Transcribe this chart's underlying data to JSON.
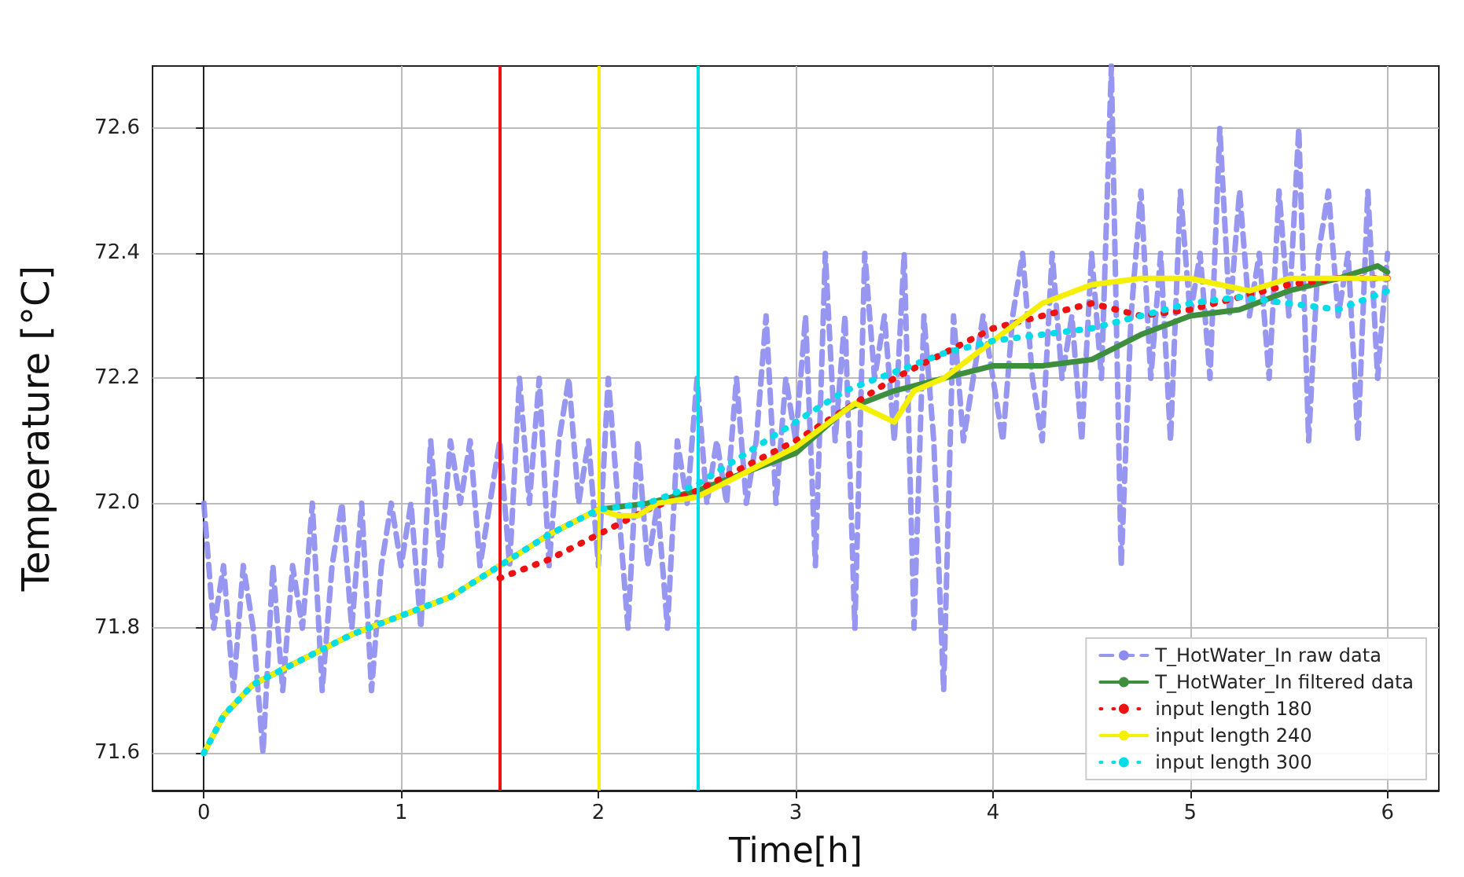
{
  "chart_data": {
    "type": "line",
    "xlabel": "Time[h]",
    "ylabel": "Temperature [°C]",
    "xlim": [
      -0.26,
      6.26
    ],
    "xticks": [
      0,
      1,
      2,
      3,
      4,
      5,
      6
    ],
    "ylim": [
      71.54,
      72.7
    ],
    "yticks": [
      71.6,
      71.8,
      {
        "value": 72,
        "label": "72.0"
      },
      72.2,
      72.4,
      72.6
    ],
    "grid": true,
    "legend": "bottom right",
    "marker": "none",
    "ref_lines": [
      {
        "axis": "x",
        "value": 1.5,
        "color": "#ee1111"
      },
      {
        "axis": "x",
        "value": 2,
        "color": "#f5f000"
      },
      {
        "axis": "x",
        "value": 2.5,
        "color": "#00dde8"
      }
    ],
    "series": [
      {
        "name": "T_HotWater_In raw data",
        "color": "#8c8cf0",
        "line_style": "dashed",
        "x": [
          0,
          0.05,
          0.1,
          0.15,
          0.2,
          0.25,
          0.3,
          0.35,
          0.4,
          0.45,
          0.5,
          0.55,
          0.6,
          0.65,
          0.7,
          0.75,
          0.8,
          0.85,
          0.9,
          0.95,
          1,
          1.05,
          1.1,
          1.15,
          1.2,
          1.25,
          1.3,
          1.35,
          1.4,
          1.45,
          1.5,
          1.55,
          1.6,
          1.65,
          1.7,
          1.75,
          1.8,
          1.85,
          1.9,
          1.95,
          2,
          2.05,
          2.1,
          2.15,
          2.2,
          2.25,
          2.3,
          2.35,
          2.4,
          2.45,
          2.5,
          2.55,
          2.6,
          2.65,
          2.7,
          2.75,
          2.8,
          2.85,
          2.9,
          2.95,
          3,
          3.05,
          3.1,
          3.15,
          3.2,
          3.25,
          3.3,
          3.35,
          3.4,
          3.45,
          3.5,
          3.55,
          3.6,
          3.65,
          3.7,
          3.75,
          3.8,
          3.85,
          3.9,
          3.95,
          4,
          4.05,
          4.1,
          4.15,
          4.2,
          4.25,
          4.3,
          4.35,
          4.4,
          4.45,
          4.5,
          4.55,
          4.6,
          4.65,
          4.7,
          4.75,
          4.8,
          4.85,
          4.9,
          4.95,
          5,
          5.05,
          5.1,
          5.15,
          5.2,
          5.25,
          5.3,
          5.35,
          5.4,
          5.45,
          5.5,
          5.55,
          5.6,
          5.65,
          5.7,
          5.75,
          5.8,
          5.85,
          5.9,
          5.95,
          6
        ],
        "values": [
          72.0,
          71.8,
          71.9,
          71.7,
          71.9,
          71.8,
          71.6,
          71.9,
          71.7,
          71.9,
          71.8,
          72.0,
          71.7,
          71.9,
          72.0,
          71.8,
          72.0,
          71.7,
          71.9,
          72.0,
          71.9,
          72.0,
          71.8,
          72.1,
          71.9,
          72.1,
          72.0,
          72.1,
          71.9,
          72.0,
          72.1,
          71.9,
          72.2,
          72.0,
          72.2,
          71.9,
          72.1,
          72.2,
          72.0,
          72.1,
          71.9,
          72.2,
          72.0,
          71.8,
          72.1,
          71.9,
          72.0,
          71.8,
          72.1,
          72.0,
          72.2,
          72.0,
          72.1,
          72.0,
          72.2,
          72.0,
          72.1,
          72.3,
          72.0,
          72.2,
          72.1,
          72.3,
          71.9,
          72.4,
          72.1,
          72.3,
          71.8,
          72.4,
          72.2,
          72.3,
          72.1,
          72.4,
          71.8,
          72.3,
          72.1,
          71.7,
          72.3,
          72.1,
          72.2,
          72.3,
          72.2,
          72.1,
          72.3,
          72.4,
          72.2,
          72.1,
          72.4,
          72.2,
          72.3,
          72.1,
          72.4,
          72.2,
          72.7,
          71.9,
          72.3,
          72.5,
          72.2,
          72.4,
          72.1,
          72.5,
          72.3,
          72.4,
          72.2,
          72.6,
          72.3,
          72.5,
          72.3,
          72.4,
          72.2,
          72.5,
          72.3,
          72.6,
          72.1,
          72.4,
          72.5,
          72.3,
          72.4,
          72.1,
          72.5,
          72.2,
          72.4
        ]
      },
      {
        "name": "T_HotWater_In filtered data",
        "color": "#3d8f3d",
        "line_style": "solid",
        "x": [
          0,
          0.1,
          0.25,
          0.5,
          0.75,
          1,
          1.25,
          1.5,
          1.75,
          2,
          2.25,
          2.5,
          2.75,
          3,
          3.25,
          3.5,
          3.75,
          4,
          4.25,
          4.5,
          4.75,
          5,
          5.25,
          5.5,
          5.75,
          5.95,
          6
        ],
        "values": [
          71.6,
          71.66,
          71.71,
          71.75,
          71.79,
          71.82,
          71.85,
          71.9,
          71.95,
          71.99,
          72.0,
          72.02,
          72.05,
          72.08,
          72.15,
          72.18,
          72.2,
          72.22,
          72.22,
          72.23,
          72.27,
          72.3,
          72.31,
          72.34,
          72.36,
          72.38,
          72.37
        ]
      },
      {
        "name": "input length 180",
        "color": "#ee1111",
        "line_style": "dotted",
        "x": [
          1.5,
          1.75,
          2,
          2.25,
          2.5,
          2.75,
          3,
          3.25,
          3.5,
          3.75,
          4,
          4.25,
          4.5,
          4.75,
          5,
          5.25,
          5.5,
          5.75,
          6
        ],
        "values": [
          71.88,
          71.91,
          71.95,
          71.99,
          72.02,
          72.06,
          72.1,
          72.15,
          72.2,
          72.24,
          72.28,
          72.3,
          72.32,
          72.3,
          72.31,
          72.33,
          72.35,
          72.36,
          72.36
        ]
      },
      {
        "name": "input length 240",
        "color": "#f5f000",
        "line_style": "solid",
        "x": [
          0,
          0.1,
          0.25,
          0.5,
          0.75,
          1,
          1.25,
          1.5,
          1.75,
          2,
          2.1,
          2.2,
          2.3,
          2.5,
          2.75,
          3,
          3.3,
          3.5,
          3.6,
          3.75,
          4,
          4.25,
          4.5,
          4.75,
          5,
          5.3,
          5.5,
          5.75,
          6
        ],
        "values": [
          71.6,
          71.66,
          71.71,
          71.75,
          71.79,
          71.82,
          71.85,
          71.9,
          71.95,
          71.99,
          71.98,
          71.98,
          72.0,
          72.01,
          72.05,
          72.09,
          72.16,
          72.13,
          72.18,
          72.2,
          72.26,
          72.32,
          72.35,
          72.36,
          72.36,
          72.34,
          72.36,
          72.36,
          72.36
        ]
      },
      {
        "name": "input length 300",
        "color": "#00dde8",
        "line_style": "dotted",
        "x": [
          0,
          0.1,
          0.25,
          0.5,
          0.75,
          1,
          1.25,
          1.5,
          1.75,
          2,
          2.25,
          2.5,
          2.75,
          3,
          3.25,
          3.5,
          3.75,
          4,
          4.25,
          4.5,
          4.75,
          5,
          5.25,
          5.5,
          5.75,
          6
        ],
        "values": [
          71.6,
          71.66,
          71.71,
          71.75,
          71.79,
          71.82,
          71.85,
          71.9,
          71.95,
          71.99,
          72.0,
          72.03,
          72.08,
          72.13,
          72.18,
          72.21,
          72.24,
          72.26,
          72.27,
          72.28,
          72.3,
          72.32,
          72.33,
          72.32,
          72.31,
          72.34
        ]
      }
    ]
  }
}
